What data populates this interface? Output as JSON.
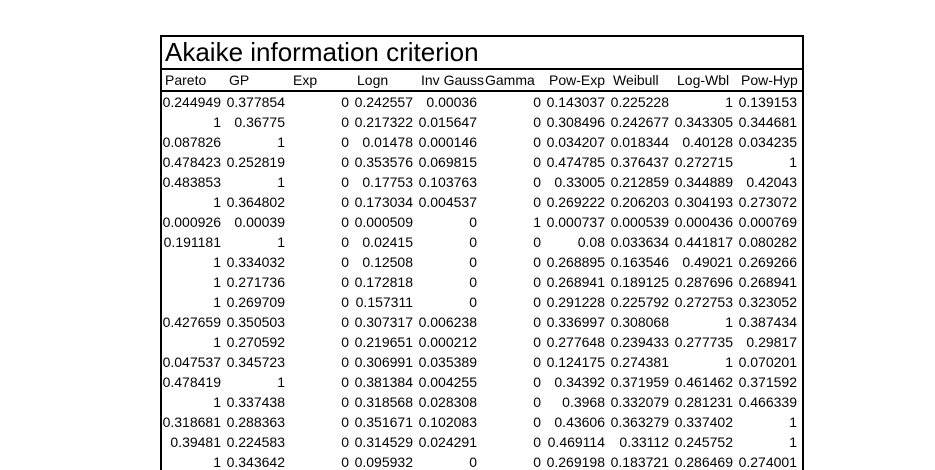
{
  "title": "Akaike information criterion",
  "colors": {
    "background": "#ffffff",
    "border": "#000000",
    "text": "#000000"
  },
  "table": {
    "columns": [
      "Pareto",
      "GP",
      "Exp",
      "Logn",
      "Inv Gauss",
      "Gamma",
      "Pow-Exp",
      "Weibull",
      "Log-Wbl",
      "Pow-Hyp"
    ],
    "rows": [
      [
        "0.244949",
        "0.377854",
        "0",
        "0.242557",
        "0.00036",
        "0",
        "0.143037",
        "0.225228",
        "1",
        "0.139153"
      ],
      [
        "1",
        "0.36775",
        "0",
        "0.217322",
        "0.015647",
        "0",
        "0.308496",
        "0.242677",
        "0.343305",
        "0.344681"
      ],
      [
        "0.087826",
        "1",
        "0",
        "0.01478",
        "0.000146",
        "0",
        "0.034207",
        "0.018344",
        "0.40128",
        "0.034235"
      ],
      [
        "0.478423",
        "0.252819",
        "0",
        "0.353576",
        "0.069815",
        "0",
        "0.474785",
        "0.376437",
        "0.272715",
        "1"
      ],
      [
        "0.483853",
        "1",
        "0",
        "0.17753",
        "0.103763",
        "0",
        "0.33005",
        "0.212859",
        "0.344889",
        "0.42043"
      ],
      [
        "1",
        "0.364802",
        "0",
        "0.173034",
        "0.004537",
        "0",
        "0.269222",
        "0.206203",
        "0.304193",
        "0.273072"
      ],
      [
        "0.000926",
        "0.00039",
        "0",
        "0.000509",
        "0",
        "1",
        "0.000737",
        "0.000539",
        "0.000436",
        "0.000769"
      ],
      [
        "0.191181",
        "1",
        "0",
        "0.02415",
        "0",
        "0",
        "0.08",
        "0.033634",
        "0.441817",
        "0.080282"
      ],
      [
        "1",
        "0.334032",
        "0",
        "0.12508",
        "0",
        "0",
        "0.268895",
        "0.163546",
        "0.49021",
        "0.269266"
      ],
      [
        "1",
        "0.271736",
        "0",
        "0.172818",
        "0",
        "0",
        "0.268941",
        "0.189125",
        "0.287696",
        "0.268941"
      ],
      [
        "1",
        "0.269709",
        "0",
        "0.157311",
        "0",
        "0",
        "0.291228",
        "0.225792",
        "0.272753",
        "0.323052"
      ],
      [
        "0.427659",
        "0.350503",
        "0",
        "0.307317",
        "0.006238",
        "0",
        "0.336997",
        "0.308068",
        "1",
        "0.387434"
      ],
      [
        "1",
        "0.270592",
        "0",
        "0.219651",
        "0.000212",
        "0",
        "0.277648",
        "0.239433",
        "0.277735",
        "0.29817"
      ],
      [
        "0.047537",
        "0.345723",
        "0",
        "0.306991",
        "0.035389",
        "0",
        "0.124175",
        "0.274381",
        "1",
        "0.070201"
      ],
      [
        "0.478419",
        "1",
        "0",
        "0.381384",
        "0.004255",
        "0",
        "0.34392",
        "0.371959",
        "0.461462",
        "0.371592"
      ],
      [
        "1",
        "0.337438",
        "0",
        "0.318568",
        "0.028308",
        "0",
        "0.3968",
        "0.332079",
        "0.281231",
        "0.466339"
      ],
      [
        "0.318681",
        "0.288363",
        "0",
        "0.351671",
        "0.102083",
        "0",
        "0.43606",
        "0.363279",
        "0.337402",
        "1"
      ],
      [
        "0.39481",
        "0.224583",
        "0",
        "0.314529",
        "0.024291",
        "0",
        "0.469114",
        "0.33112",
        "0.245752",
        "1"
      ],
      [
        "1",
        "0.343642",
        "0",
        "0.095932",
        "0",
        "0",
        "0.269198",
        "0.183721",
        "0.286469",
        "0.274001"
      ]
    ]
  }
}
